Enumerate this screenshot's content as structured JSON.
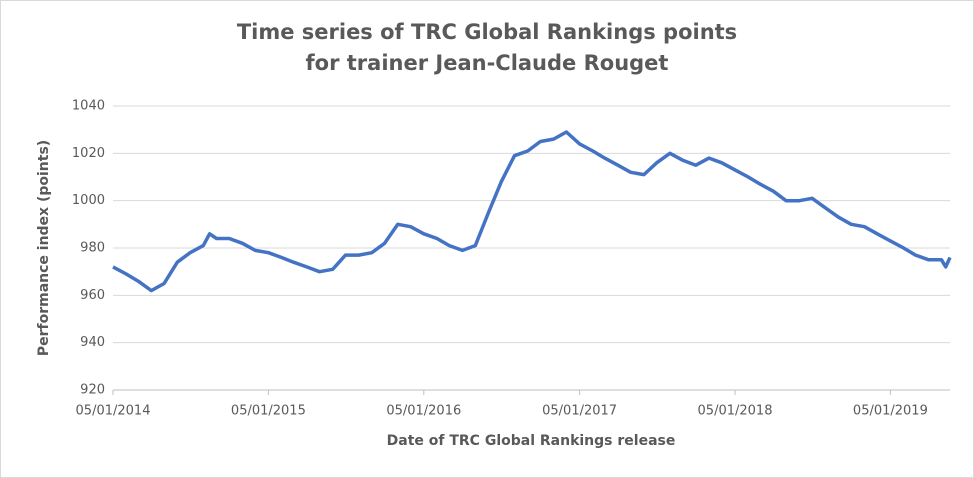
{
  "chart_data": {
    "type": "line",
    "title": [
      "Time series of TRC Global Rankings points",
      "for trainer Jean-Claude Rouget"
    ],
    "x_label": "Date of TRC Global Rankings release",
    "y_label": "Performance index (points)",
    "x": [
      "2014-01-05",
      "2014-02-05",
      "2014-03-05",
      "2014-04-05",
      "2014-05-05",
      "2014-06-05",
      "2014-07-05",
      "2014-08-05",
      "2014-08-20",
      "2014-09-05",
      "2014-10-05",
      "2014-11-05",
      "2014-12-05",
      "2015-01-05",
      "2015-02-05",
      "2015-03-05",
      "2015-04-05",
      "2015-05-05",
      "2015-06-05",
      "2015-07-05",
      "2015-08-05",
      "2015-09-05",
      "2015-10-05",
      "2015-11-05",
      "2015-12-05",
      "2016-01-05",
      "2016-02-05",
      "2016-03-05",
      "2016-04-05",
      "2016-05-05",
      "2016-06-05",
      "2016-07-05",
      "2016-08-05",
      "2016-09-05",
      "2016-10-05",
      "2016-11-05",
      "2016-12-05",
      "2017-01-05",
      "2017-02-05",
      "2017-03-05",
      "2017-04-05",
      "2017-05-05",
      "2017-06-05",
      "2017-07-05",
      "2017-08-05",
      "2017-09-05",
      "2017-10-05",
      "2017-11-05",
      "2017-12-05",
      "2018-01-05",
      "2018-02-05",
      "2018-03-05",
      "2018-04-05",
      "2018-05-05",
      "2018-06-05",
      "2018-07-05",
      "2018-08-05",
      "2018-09-05",
      "2018-10-05",
      "2018-11-05",
      "2018-12-05",
      "2019-01-05",
      "2019-02-05",
      "2019-03-05",
      "2019-04-05",
      "2019-05-05",
      "2019-05-15",
      "2019-05-25"
    ],
    "series": [
      {
        "name": "Performance index",
        "color": "#4472c4",
        "values": [
          972,
          969,
          966,
          962,
          965,
          974,
          978,
          981,
          986,
          984,
          984,
          982,
          979,
          978,
          976,
          974,
          972,
          970,
          971,
          977,
          977,
          978,
          982,
          990,
          989,
          986,
          984,
          981,
          979,
          981,
          995,
          1008,
          1019,
          1021,
          1025,
          1026,
          1029,
          1024,
          1021,
          1018,
          1015,
          1012,
          1011,
          1016,
          1020,
          1017,
          1015,
          1018,
          1016,
          1013,
          1010,
          1007,
          1004,
          1000,
          1000,
          1001,
          997,
          993,
          990,
          989,
          986,
          983,
          980,
          977,
          975,
          975,
          972,
          976
        ]
      }
    ],
    "xlim": [
      "2014-01-05",
      "2019-05-25"
    ],
    "xticks": [
      {
        "value": "2014-01-05",
        "label": "05/01/2014"
      },
      {
        "value": "2015-01-05",
        "label": "05/01/2015"
      },
      {
        "value": "2016-01-05",
        "label": "05/01/2016"
      },
      {
        "value": "2017-01-05",
        "label": "05/01/2017"
      },
      {
        "value": "2018-01-05",
        "label": "05/01/2018"
      },
      {
        "value": "2019-01-05",
        "label": "05/01/2019"
      }
    ],
    "ylim": [
      920,
      1040
    ],
    "yticks": [
      920,
      940,
      960,
      980,
      1000,
      1020,
      1040
    ],
    "grid": true
  }
}
